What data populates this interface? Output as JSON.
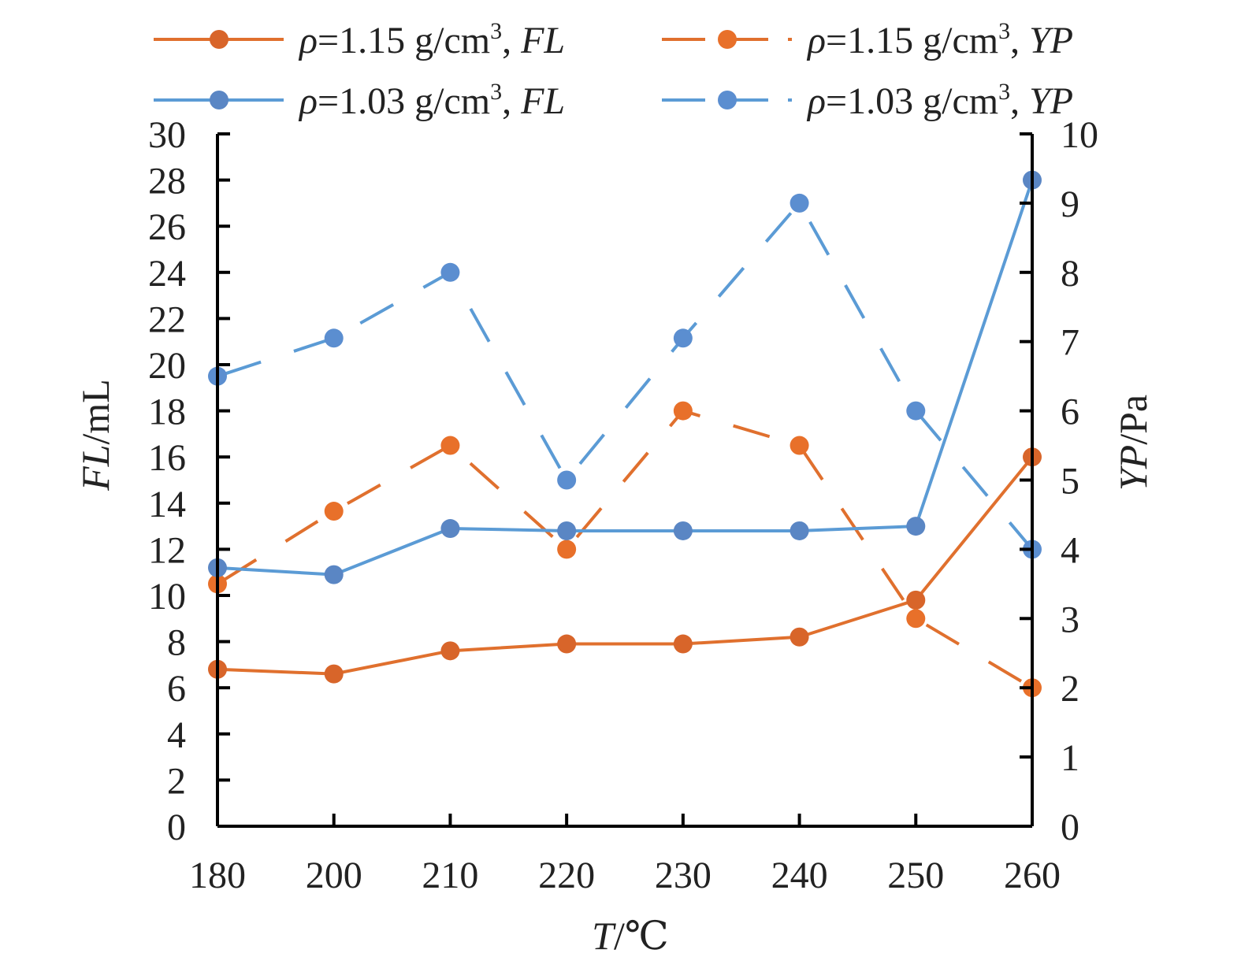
{
  "chart_data": {
    "type": "line",
    "x": [
      "180",
      "200",
      "210",
      "220",
      "230",
      "240",
      "250",
      "260"
    ],
    "xlabel_var": "T",
    "xlabel_unit": "/℃",
    "y_left": {
      "label_var": "FL",
      "label_unit": "/mL",
      "ylim": [
        0,
        30
      ],
      "ticks": [
        "0",
        "2",
        "4",
        "6",
        "8",
        "10",
        "12",
        "14",
        "16",
        "18",
        "20",
        "22",
        "24",
        "26",
        "28",
        "30"
      ]
    },
    "y_right": {
      "label_var": "YP",
      "label_unit": "/Pa",
      "ylim": [
        0,
        10
      ],
      "ticks": [
        "0",
        "1",
        "2",
        "3",
        "4",
        "5",
        "6",
        "7",
        "8",
        "9",
        "10"
      ]
    },
    "series": [
      {
        "legend_prefix": "ρ",
        "legend_mid": "=1.15 g/cm",
        "legend_sup": "3",
        "legend_comma": ", ",
        "legend_var": "FL",
        "axis": "left",
        "line_color": "#E0702E",
        "marker_color": "#D8652A",
        "dashed": false,
        "values": [
          6.8,
          6.6,
          7.6,
          7.9,
          7.9,
          8.2,
          9.8,
          16.0
        ]
      },
      {
        "legend_prefix": "ρ",
        "legend_mid": "=1.15 g/cm",
        "legend_sup": "3",
        "legend_comma": ", ",
        "legend_var": "YP",
        "axis": "right",
        "line_color": "#E0702E",
        "marker_color": "#E8702A",
        "dashed": true,
        "values": [
          3.5,
          4.55,
          5.5,
          4.0,
          6.0,
          5.5,
          3.0,
          2.0
        ]
      },
      {
        "legend_prefix": "ρ",
        "legend_mid": "=1.03 g/cm",
        "legend_sup": "3",
        "legend_comma": ", ",
        "legend_var": "FL",
        "axis": "left",
        "line_color": "#5B9BD5",
        "marker_color": "#5A86C4",
        "dashed": false,
        "values": [
          11.2,
          10.9,
          12.9,
          12.8,
          12.8,
          12.8,
          13.0,
          28.0
        ]
      },
      {
        "legend_prefix": "ρ",
        "legend_mid": "=1.03 g/cm",
        "legend_sup": "3",
        "legend_comma": ", ",
        "legend_var": "YP",
        "axis": "right",
        "line_color": "#5B9BD5",
        "marker_color": "#5B8ED0",
        "dashed": true,
        "values": [
          6.5,
          7.05,
          8.0,
          5.0,
          7.05,
          9.0,
          6.0,
          4.0
        ]
      }
    ],
    "grid": false,
    "legend_position": "top"
  }
}
